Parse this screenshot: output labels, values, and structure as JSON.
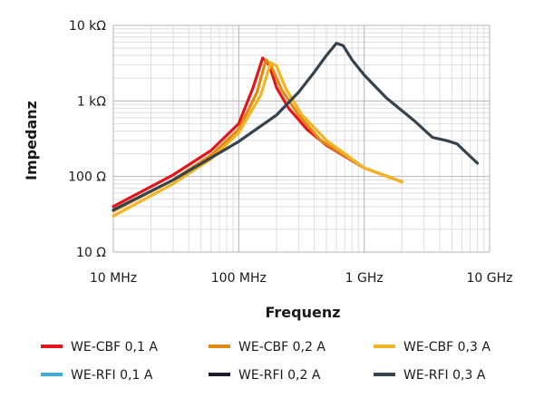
{
  "chart_data": {
    "type": "line",
    "xlabel": "Frequenz",
    "ylabel": "Impedanz",
    "x_scale": "log",
    "y_scale": "log",
    "xlim": [
      10000000,
      10000000000
    ],
    "ylim": [
      10,
      10000
    ],
    "grid": true,
    "legend_position": "bottom",
    "x_ticks": [
      {
        "value": 10000000,
        "label": "10 MHz"
      },
      {
        "value": 100000000,
        "label": "100 MHz"
      },
      {
        "value": 1000000000,
        "label": "1 GHz"
      },
      {
        "value": 10000000000,
        "label": "10 GHz"
      }
    ],
    "y_ticks": [
      {
        "value": 10,
        "label": "10 Ω"
      },
      {
        "value": 100,
        "label": "100 Ω"
      },
      {
        "value": 1000,
        "label": "1 kΩ"
      },
      {
        "value": 10000,
        "label": "10 kΩ"
      }
    ],
    "series": [
      {
        "name": "WE-CBF 0,1 A",
        "color": "#e3151a",
        "x": [
          10000000,
          30000000,
          60000000,
          100000000,
          130000000,
          155000000,
          175000000,
          200000000,
          250000000,
          350000000,
          500000000,
          1000000000,
          2000000000
        ],
        "y": [
          40,
          105,
          220,
          500,
          1500,
          3700,
          3000,
          1500,
          800,
          420,
          260,
          130,
          85
        ]
      },
      {
        "name": "WE-CBF 0,2 A",
        "color": "#e08a10",
        "x": [
          10000000,
          30000000,
          60000000,
          100000000,
          140000000,
          165000000,
          180000000,
          220000000,
          300000000,
          450000000,
          1000000000,
          2000000000
        ],
        "y": [
          35,
          90,
          190,
          420,
          1300,
          3500,
          3000,
          1400,
          650,
          300,
          130,
          85
        ]
      },
      {
        "name": "WE-CBF 0,3 A",
        "color": "#f2b424",
        "x": [
          10000000,
          30000000,
          60000000,
          100000000,
          150000000,
          180000000,
          200000000,
          240000000,
          320000000,
          500000000,
          1000000000,
          2000000000
        ],
        "y": [
          30,
          80,
          170,
          380,
          1200,
          3200,
          2900,
          1400,
          650,
          300,
          130,
          85
        ]
      },
      {
        "name": "WE-RFI 0,1 A",
        "color": "#3bb0d9",
        "x": [],
        "y": []
      },
      {
        "name": "WE-RFI 0,2 A",
        "color": "#1c1e2c",
        "x": [],
        "y": []
      },
      {
        "name": "WE-RFI 0,3 A",
        "color": "#36424c",
        "x": [
          10000000,
          30000000,
          100000000,
          200000000,
          300000000,
          400000000,
          500000000,
          600000000,
          680000000,
          800000000,
          1000000000,
          1500000000,
          2500000000,
          3500000000,
          4500000000,
          5500000000,
          8000000000
        ],
        "y": [
          36,
          90,
          290,
          650,
          1300,
          2400,
          4000,
          5800,
          5400,
          3500,
          2200,
          1100,
          550,
          330,
          300,
          270,
          150
        ]
      }
    ]
  }
}
